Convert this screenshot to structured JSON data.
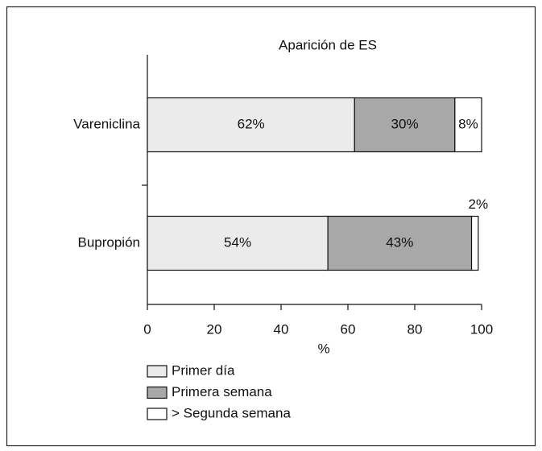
{
  "chart_data": {
    "type": "stacked-barh",
    "title": "Aparición de ES",
    "categories": [
      "Vareniclina",
      "Bupropión"
    ],
    "series": [
      {
        "name": "Primer día",
        "color": "#ebebeb",
        "values": [
          62,
          54
        ],
        "value_labels": [
          "62%",
          "54%"
        ]
      },
      {
        "name": "Primera semana",
        "color": "#a8a8a8",
        "values": [
          30,
          43
        ],
        "value_labels": [
          "30%",
          "43%"
        ]
      },
      {
        "name": "> Segunda semana",
        "color": "#ffffff",
        "values": [
          8,
          2
        ],
        "value_labels": [
          "8%",
          "2%"
        ]
      }
    ],
    "xlabel": "%",
    "xlim": [
      0,
      100
    ],
    "xticks": [
      0,
      20,
      40,
      60,
      80,
      100
    ]
  }
}
